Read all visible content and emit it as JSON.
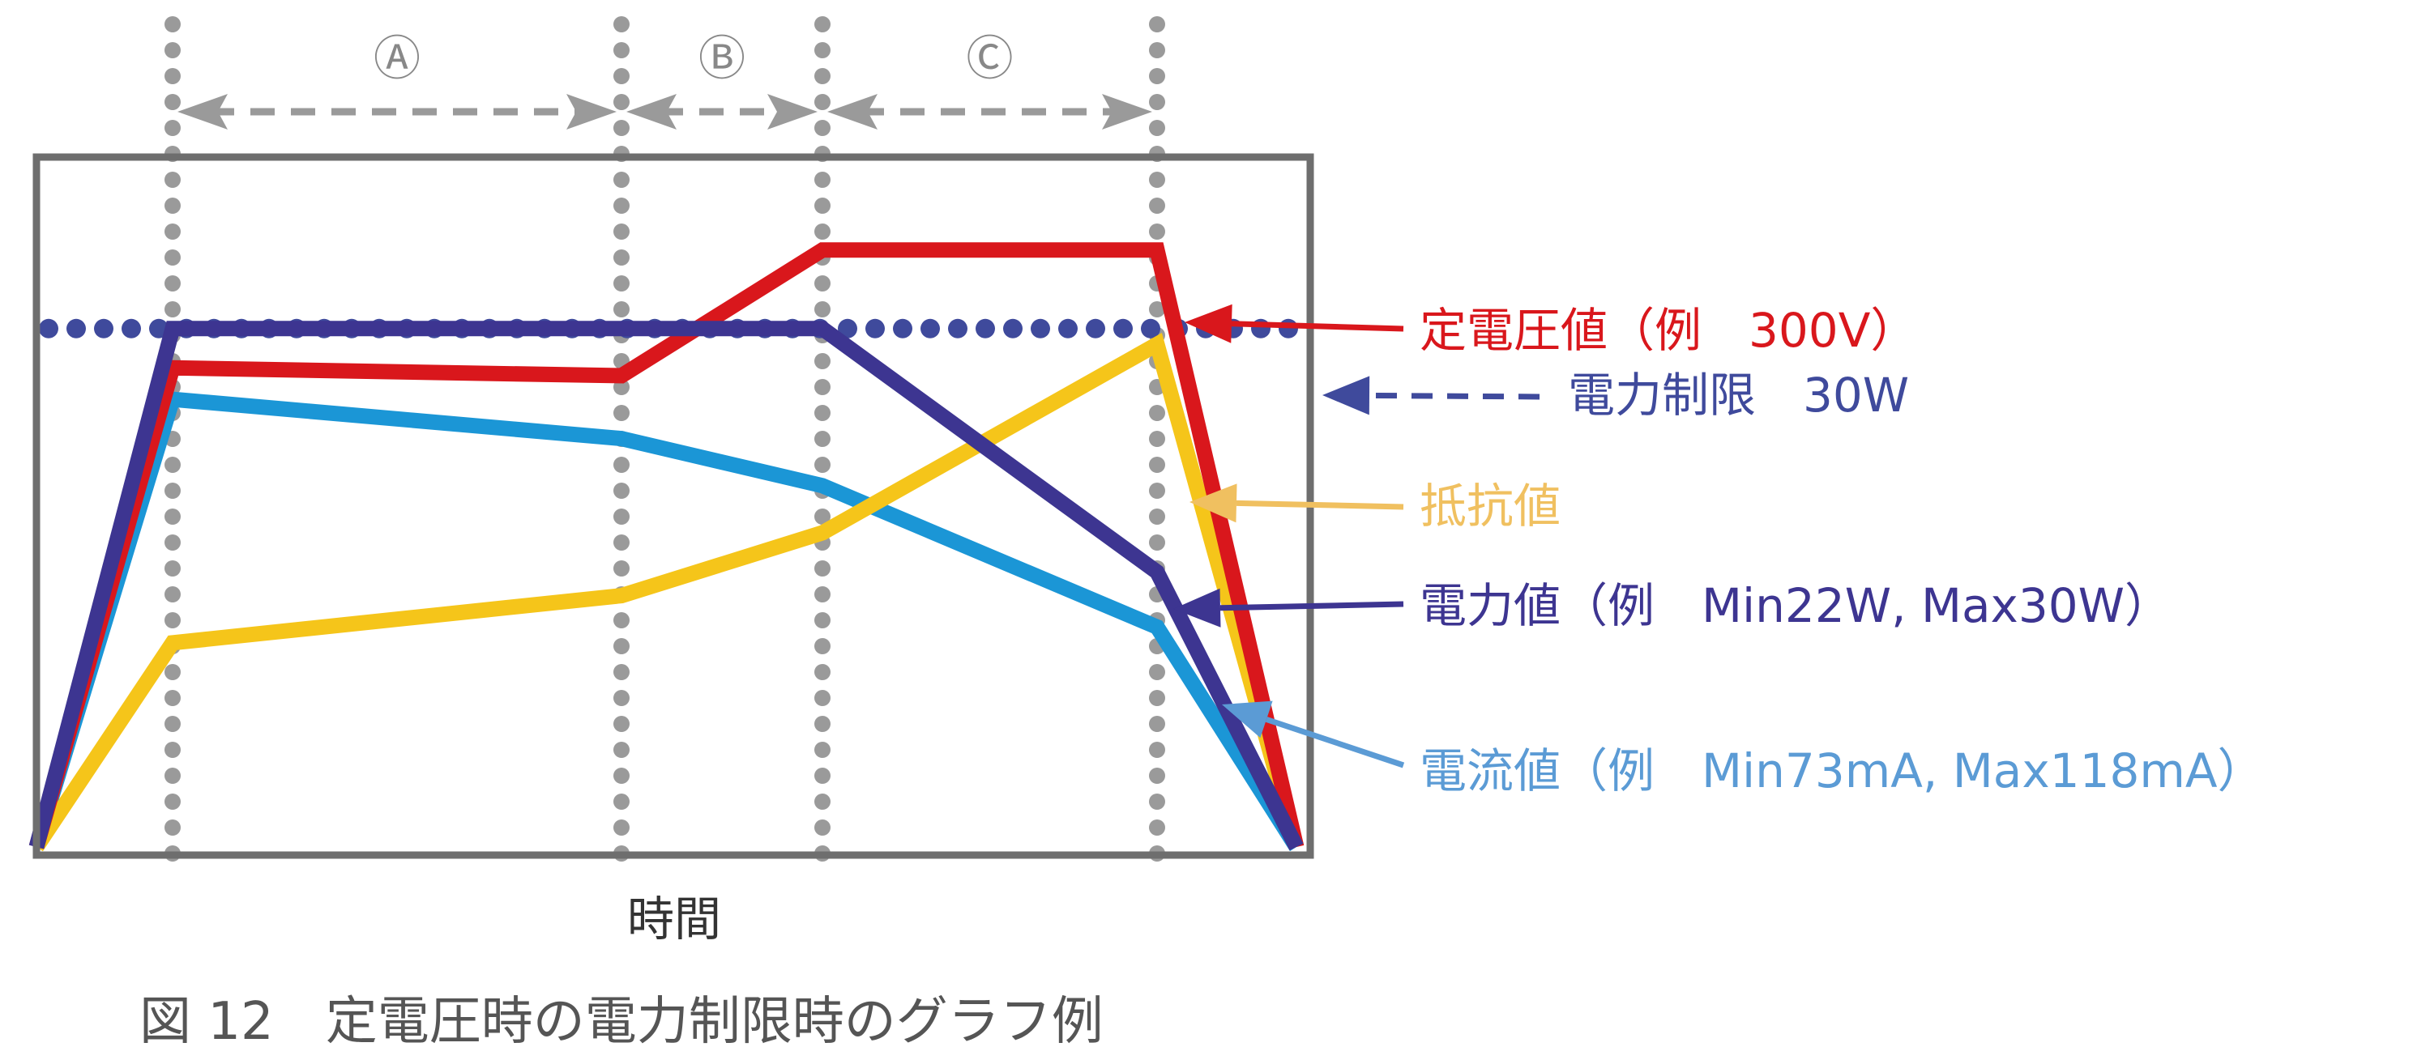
{
  "caption": "図 12　定電圧時の電力制限時のグラフ例",
  "colors": {
    "voltage": "#d9171c",
    "power_limit": "#3f4a9c",
    "resistance": "#f5c51a",
    "power": "#3d3591",
    "current": "#1b96d6",
    "resistance_label": "#f0c060",
    "current_label": "#5b9bd5",
    "frame": "#6e6e6e",
    "divider": "#9a9a9a"
  },
  "chart_data": {
    "type": "line",
    "title": "",
    "xlabel": "時間",
    "ylabel": "",
    "x": [
      0,
      1,
      2,
      3,
      4,
      5
    ],
    "xlim": [
      0,
      5
    ],
    "ylim": [
      0,
      100
    ],
    "dividers": [
      1,
      2,
      3,
      4
    ],
    "phases": [
      {
        "label": "Ⓐ",
        "from": 1,
        "to": 2
      },
      {
        "label": "Ⓑ",
        "from": 2,
        "to": 3
      },
      {
        "label": "Ⓒ",
        "from": 3,
        "to": 4
      }
    ],
    "series": [
      {
        "key": "current",
        "label": "電流値（例　Min73mA, Max118mA）",
        "values": [
          0,
          57,
          52,
          46,
          28,
          0
        ]
      },
      {
        "key": "resistance",
        "label": "抵抗値",
        "values": [
          0,
          26,
          32,
          40,
          64,
          0
        ]
      },
      {
        "key": "voltage",
        "label": "定電圧値（例　300V）",
        "values": [
          0,
          61,
          60,
          76,
          76,
          0
        ]
      },
      {
        "key": "power",
        "label": "電力値（例　Min22W, Max30W）",
        "values": [
          0,
          66,
          66,
          66,
          35,
          0
        ]
      }
    ],
    "reference_lines": [
      {
        "key": "power_limit",
        "label": "電力制限　30W",
        "y": 66
      }
    ]
  }
}
